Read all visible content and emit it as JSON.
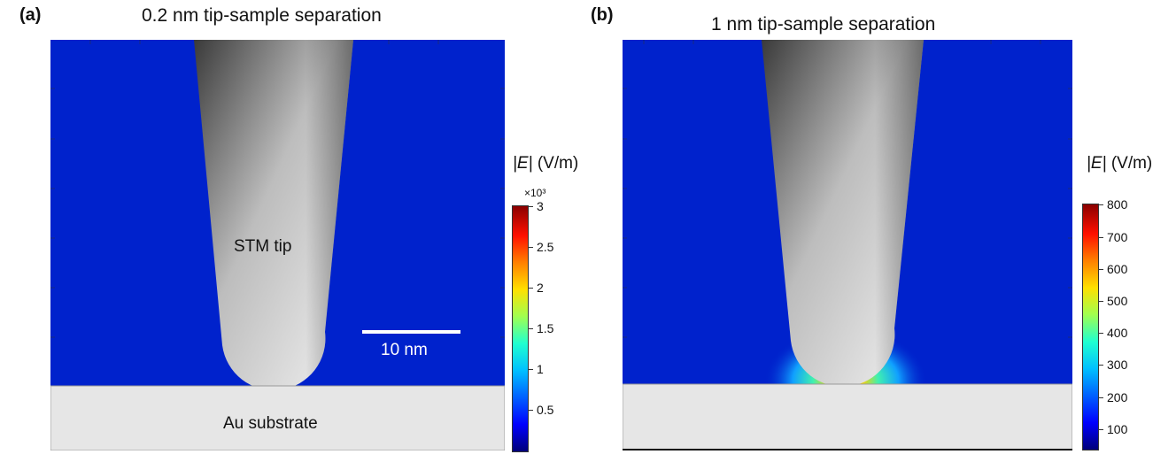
{
  "panel_a": {
    "letter": "(a)",
    "title": "0.2 nm tip-sample separation",
    "tip_label": "STM tip",
    "substrate_label": "Au substrate",
    "scale_bar_label": "10 nm",
    "colorbar": {
      "title_symbol": "|E|",
      "title_unit": "(V/m)",
      "exponent": "×10³",
      "ticks": [
        "3",
        "2.5",
        "2",
        "1.5",
        "1",
        "0.5"
      ]
    }
  },
  "panel_b": {
    "letter": "(b)",
    "title": "1 nm tip-sample separation",
    "colorbar": {
      "title_symbol": "|E|",
      "title_unit": "(V/m)",
      "ticks": [
        "800",
        "700",
        "600",
        "500",
        "400",
        "300",
        "200",
        "100"
      ]
    }
  },
  "colors": {
    "field_background": "#0022cc",
    "substrate": "#e6e6e6",
    "hotspot": "#ff2000"
  }
}
